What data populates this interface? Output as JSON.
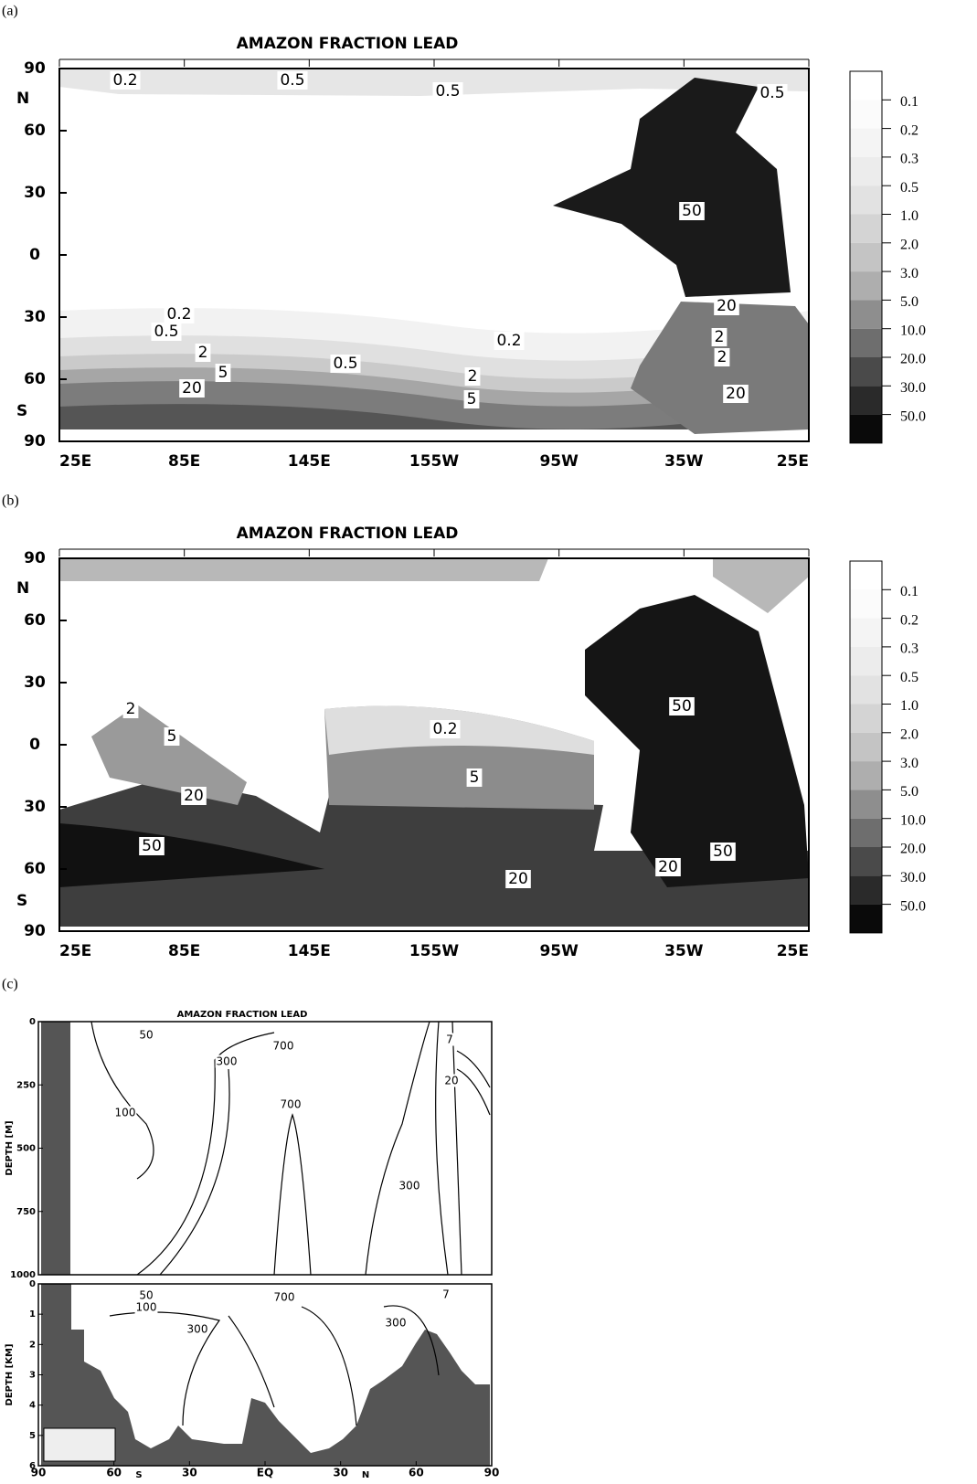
{
  "panels": [
    {
      "label": "(a)",
      "title": "AMAZON FRACTION LEAD",
      "y_ticks": [
        "90",
        "60",
        "30",
        "0",
        "30",
        "60",
        "90"
      ],
      "hemispheres": [
        "N",
        "S"
      ],
      "x_ticks": [
        "25E",
        "85E",
        "145E",
        "155W",
        "95W",
        "35W",
        "25E"
      ],
      "legend": [
        "0.1",
        "0.2",
        "0.3",
        "0.5",
        "1.0",
        "2.0",
        "3.0",
        "5.0",
        "10.0",
        "20.0",
        "30.0",
        "50.0"
      ],
      "contour_labels": [
        "0.2",
        "0.5",
        "0.5",
        "0.5",
        "50",
        "0.2",
        "0.5",
        "20",
        "2",
        "2",
        "2",
        "5",
        "0.5",
        "0.2",
        "2",
        "20",
        "5",
        "20"
      ]
    },
    {
      "label": "(b)",
      "title": "AMAZON FRACTION LEAD",
      "y_ticks": [
        "90",
        "60",
        "30",
        "0",
        "30",
        "60",
        "90"
      ],
      "hemispheres": [
        "N",
        "S"
      ],
      "x_ticks": [
        "25E",
        "85E",
        "145E",
        "155W",
        "95W",
        "35W",
        "25E"
      ],
      "legend": [
        "0.1",
        "0.2",
        "0.3",
        "0.5",
        "1.0",
        "2.0",
        "3.0",
        "5.0",
        "10.0",
        "20.0",
        "30.0",
        "50.0"
      ],
      "contour_labels": [
        "2",
        "5",
        "20",
        "0.2",
        "5",
        "50",
        "50",
        "50",
        "20",
        "20"
      ]
    }
  ],
  "section": {
    "label": "(c)",
    "title": "AMAZON FRACTION LEAD",
    "upper_axis_label": "DEPTH [M]",
    "upper_ticks": [
      "0",
      "250",
      "500",
      "750",
      "1000"
    ],
    "lower_axis_label": "DEPTH [KM]",
    "lower_ticks": [
      "0",
      "1",
      "2",
      "3",
      "4",
      "5",
      "6"
    ],
    "x_ticks": [
      "90",
      "60",
      "30",
      "EQ",
      "30",
      "60",
      "90"
    ],
    "hemispheres": [
      "S",
      "N"
    ],
    "upper_contour_labels": [
      "50",
      "700",
      "300",
      "7",
      "20",
      "100",
      "700",
      "300"
    ],
    "lower_contour_labels": [
      "50",
      "100",
      "700",
      "7",
      "300",
      "300"
    ]
  }
}
